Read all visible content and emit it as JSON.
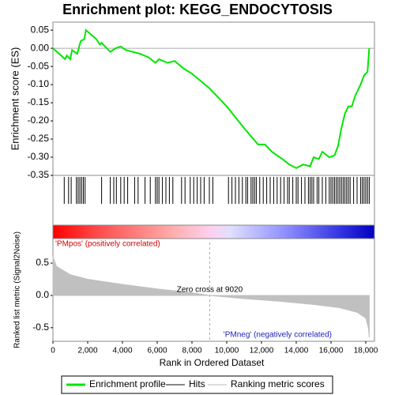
{
  "chart_data": {
    "type": "gsea",
    "title": "Enrichment plot: KEGG_ENDOCYTOSIS",
    "ylabel": "Enrichment score (ES)",
    "y2label": "Ranked list metric (Signal2Noise)",
    "xlabel": "Rank in Ordered Dataset",
    "pos_label": "'PMpos' (positively correlated)",
    "neg_label": "'PMneg' (negatively correlated)",
    "zero_cross_label": "Zero cross at 9020",
    "zero_cross": 9020,
    "xlim": [
      0,
      18500
    ],
    "xticks": [
      0,
      {
        "value": 2000,
        "label": "2,000"
      },
      {
        "value": 4000,
        "label": "4,000"
      },
      {
        "value": 6000,
        "label": "6,000"
      },
      {
        "value": 8000,
        "label": "8,000"
      },
      {
        "value": 10000,
        "label": "10,000"
      },
      {
        "value": 12000,
        "label": "12,000"
      },
      {
        "value": 14000,
        "label": "14,000"
      },
      {
        "value": 16000,
        "label": "16,000"
      },
      {
        "value": 18000,
        "label": "18,000"
      }
    ],
    "ylim": [
      -0.35,
      0.072
    ],
    "yticks": [
      0.05,
      {
        "value": 0,
        "label": "0.00"
      },
      -0.05,
      {
        "value": -0.1,
        "label": "-0.10"
      },
      -0.15,
      {
        "value": -0.2,
        "label": "-0.20"
      },
      -0.25,
      {
        "value": -0.3,
        "label": "-0.30"
      },
      -0.35
    ],
    "y2lim": [
      -0.71,
      0.88
    ],
    "y2ticks": [
      0.5,
      {
        "value": 0,
        "label": "0.0"
      },
      -0.5
    ],
    "series": [
      {
        "name": "Enrichment profile",
        "color": "#00e600",
        "x": [
          0,
          700,
          800,
          1000,
          1100,
          1400,
          1600,
          1800,
          1900,
          2500,
          2700,
          2800,
          3300,
          3600,
          3900,
          4200,
          4600,
          5000,
          5500,
          5900,
          6100,
          6600,
          7000,
          7500,
          8000,
          9000,
          10000,
          11000,
          11800,
          12200,
          12600,
          13200,
          13600,
          14000,
          14400,
          14800,
          15000,
          15300,
          15500,
          15900,
          16200,
          16400,
          16600,
          16800,
          17000,
          17200,
          17400,
          17700,
          17900,
          18100,
          18200
        ],
        "values": [
          0,
          -0.03,
          -0.02,
          -0.03,
          -0.005,
          -0.015,
          0.02,
          0.025,
          0.05,
          0.025,
          0.01,
          0.015,
          -0.01,
          0,
          0.005,
          -0.005,
          -0.01,
          -0.015,
          -0.025,
          -0.04,
          -0.03,
          -0.04,
          -0.035,
          -0.055,
          -0.07,
          -0.11,
          -0.16,
          -0.22,
          -0.265,
          -0.265,
          -0.285,
          -0.305,
          -0.32,
          -0.33,
          -0.32,
          -0.325,
          -0.3,
          -0.305,
          -0.285,
          -0.3,
          -0.295,
          -0.27,
          -0.22,
          -0.18,
          -0.16,
          -0.16,
          -0.13,
          -0.1,
          -0.075,
          -0.065,
          0
        ]
      },
      {
        "name": "Hits",
        "color": "#000000",
        "x": [
          650,
          900,
          1050,
          1350,
          1450,
          1550,
          1650,
          1750,
          1850,
          2800,
          3300,
          3500,
          3650,
          3900,
          4100,
          4300,
          4700,
          4900,
          5300,
          5600,
          5900,
          6000,
          6100,
          6300,
          6500,
          6700,
          6900,
          7400,
          7600,
          7900,
          8100,
          8300,
          8500,
          8700,
          9000,
          9200,
          10100,
          10300,
          10500,
          10700,
          10900,
          11100,
          11200,
          11400,
          11500,
          11600,
          11700,
          11900,
          12100,
          12300,
          12500,
          12700,
          12900,
          13100,
          13300,
          13500,
          13600,
          13800,
          14000,
          14100,
          14300,
          14500,
          14700,
          14800,
          14900,
          15000,
          15200,
          15300,
          15500,
          15700,
          15900,
          16000,
          16100,
          16200,
          16300,
          16400,
          16500,
          16600,
          16700,
          16800,
          16900,
          17000,
          17100,
          17300,
          17500,
          17700,
          17800,
          17900,
          18000,
          18100,
          18200
        ]
      },
      {
        "name": "Ranking metric scores",
        "color": "#c0c0c0",
        "x": [
          0,
          200,
          1000,
          2000,
          4000,
          6000,
          8000,
          9020,
          11000,
          13000,
          15000,
          16500,
          17500,
          18000,
          18150,
          18200
        ],
        "values": [
          0.6,
          0.45,
          0.32,
          0.25,
          0.17,
          0.1,
          0.04,
          0,
          -0.05,
          -0.09,
          -0.14,
          -0.19,
          -0.26,
          -0.35,
          -0.5,
          -0.65
        ]
      }
    ]
  }
}
